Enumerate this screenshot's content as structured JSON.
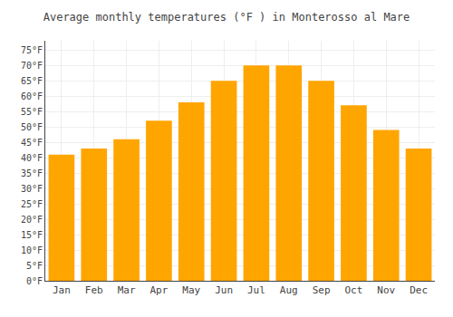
{
  "chart_data": {
    "type": "bar",
    "title": "Average monthly temperatures (°F ) in Monterosso al Mare",
    "categories": [
      "Jan",
      "Feb",
      "Mar",
      "Apr",
      "May",
      "Jun",
      "Jul",
      "Aug",
      "Sep",
      "Oct",
      "Nov",
      "Dec"
    ],
    "values": [
      41,
      43,
      46,
      52,
      58,
      65,
      70,
      70,
      65,
      57,
      49,
      43
    ],
    "color": "#FFA500",
    "ylim": [
      0,
      78
    ],
    "yticks": [
      {
        "value": 0,
        "label": "0°F"
      },
      {
        "value": 5,
        "label": "5°F"
      },
      {
        "value": 10,
        "label": "10°F"
      },
      {
        "value": 15,
        "label": "15°F"
      },
      {
        "value": 20,
        "label": "20°F"
      },
      {
        "value": 25,
        "label": "25°F"
      },
      {
        "value": 30,
        "label": "30°F"
      },
      {
        "value": 35,
        "label": "35°F"
      },
      {
        "value": 40,
        "label": "40°F"
      },
      {
        "value": 45,
        "label": "45°F"
      },
      {
        "value": 50,
        "label": "50°F"
      },
      {
        "value": 55,
        "label": "55°F"
      },
      {
        "value": 60,
        "label": "60°F"
      },
      {
        "value": 65,
        "label": "65°F"
      },
      {
        "value": 70,
        "label": "70°F"
      },
      {
        "value": 75,
        "label": "75°F"
      }
    ],
    "grid": true
  }
}
